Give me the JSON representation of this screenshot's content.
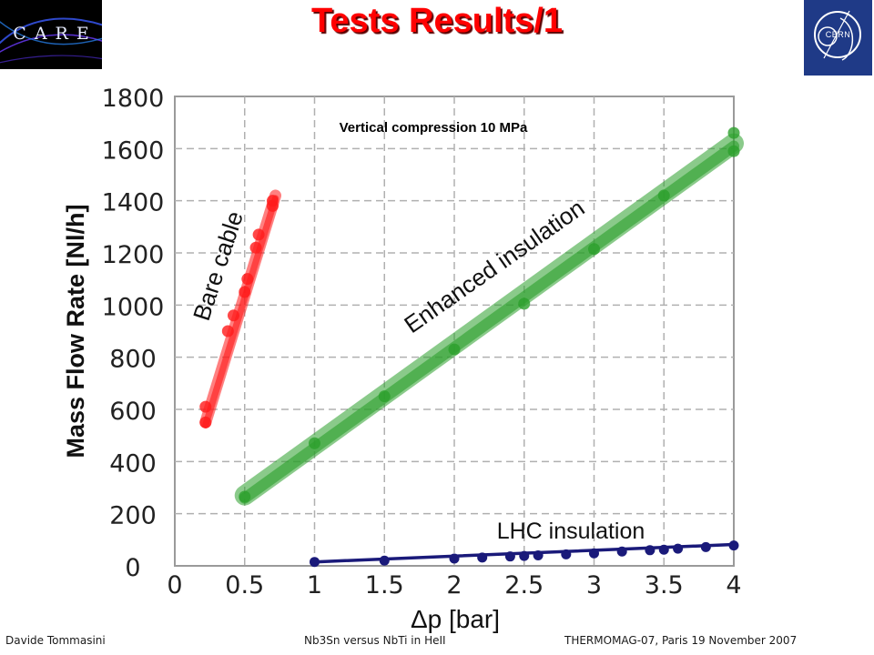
{
  "slide": {
    "title": "Tests Results/1",
    "logo_left_text": "CARE",
    "logo_right_text": "CERN"
  },
  "footer": {
    "left": "Davide Tommasini",
    "center": "Nb3Sn versus NbTi in HeII",
    "right": "THERMOMAG-07, Paris 19 November 2007"
  },
  "colors": {
    "bare_cable": "#ff1a1a",
    "enhanced_insulation": "#2ca02c",
    "lhc_insulation": "#1a1a7a",
    "title": "#ff0000"
  },
  "chart_data": {
    "type": "scatter",
    "title": "Vertical compression 10 MPa",
    "xlabel": "Δp [bar]",
    "ylabel": "Mass Flow Rate [Nl/h]",
    "xlim": [
      0,
      4
    ],
    "ylim": [
      0,
      1800
    ],
    "xticks": [
      "0",
      "0.5",
      "1",
      "1.5",
      "2",
      "2.5",
      "3",
      "3.5",
      "4"
    ],
    "yticks": [
      "0",
      "200",
      "400",
      "600",
      "800",
      "1000",
      "1200",
      "1400",
      "1600",
      "1800"
    ],
    "grid": true,
    "series": [
      {
        "name": "Bare cable",
        "color": "#ff1a1a",
        "fit": [
          [
            0.22,
            550
          ],
          [
            0.72,
            1420
          ]
        ],
        "x": [
          0.22,
          0.22,
          0.38,
          0.42,
          0.5,
          0.52,
          0.58,
          0.6,
          0.7,
          0.7
        ],
        "y": [
          550,
          610,
          900,
          960,
          1050,
          1100,
          1220,
          1270,
          1380,
          1400
        ]
      },
      {
        "name": "Enhanced insulation",
        "color": "#2ca02c",
        "fit": [
          [
            0.5,
            270
          ],
          [
            4.0,
            1620
          ]
        ],
        "x": [
          0.5,
          1.0,
          1.5,
          2.0,
          2.5,
          3.0,
          3.5,
          4.0,
          4.0
        ],
        "y": [
          265,
          470,
          650,
          830,
          1005,
          1215,
          1420,
          1590,
          1660
        ]
      },
      {
        "name": "LHC insulation",
        "color": "#1a1a7a",
        "fit": [
          [
            1.0,
            15
          ],
          [
            4.0,
            82
          ]
        ],
        "x": [
          1.0,
          1.5,
          2.0,
          2.2,
          2.4,
          2.5,
          2.6,
          2.8,
          3.0,
          3.2,
          3.4,
          3.5,
          3.6,
          3.8,
          4.0
        ],
        "y": [
          15,
          20,
          28,
          32,
          36,
          38,
          40,
          44,
          48,
          55,
          60,
          62,
          66,
          72,
          78
        ]
      }
    ],
    "annotations": [
      "Bare cable",
      "Enhanced insulation",
      "LHC insulation"
    ]
  }
}
